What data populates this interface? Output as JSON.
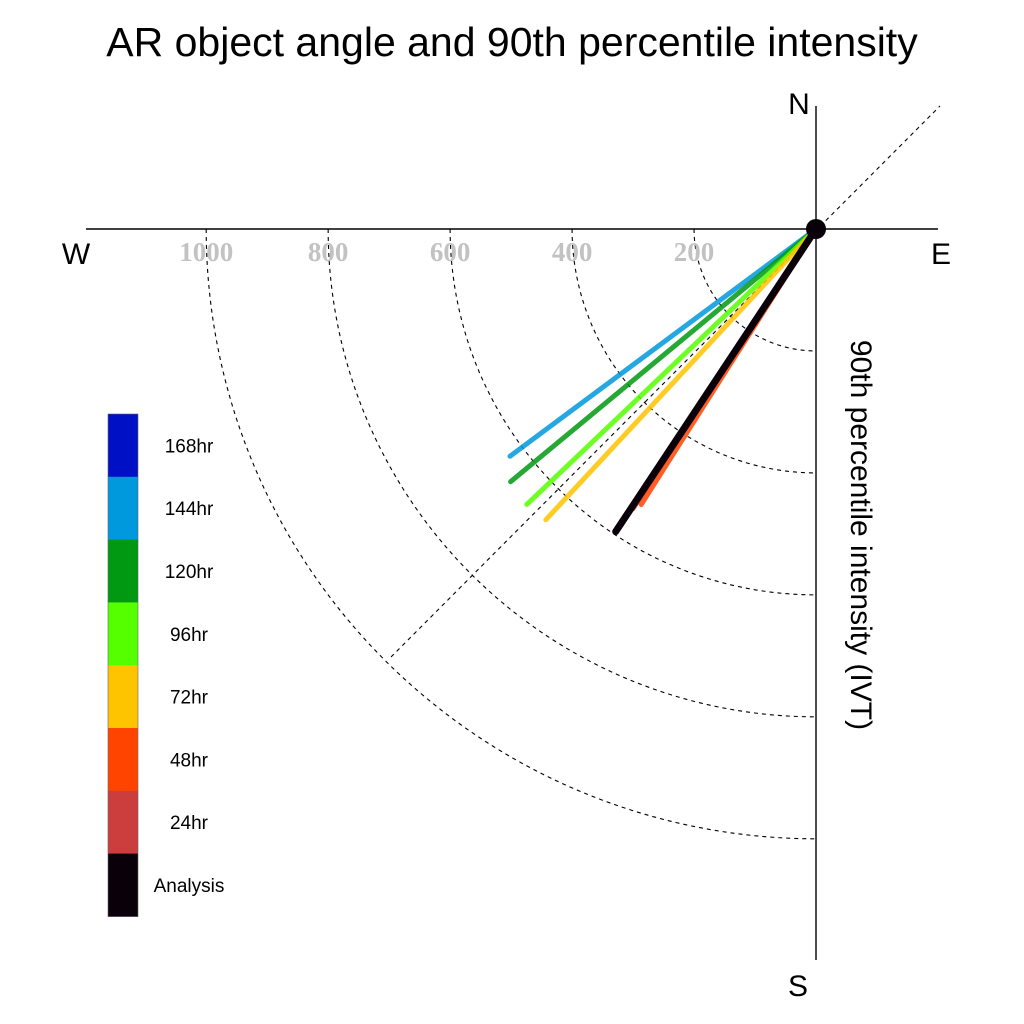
{
  "chart_data": {
    "type": "polar-vector",
    "title": "AR object angle and 90th percentile intensity",
    "radial_label": "90th percentile intensity (IVT)",
    "compass": {
      "north": "N",
      "south": "S",
      "east": "E",
      "west": "W"
    },
    "radial_ticks": [
      "200",
      "400",
      "600",
      "800",
      "1000"
    ],
    "radial_tick_values": [
      200,
      400,
      600,
      800,
      1000
    ],
    "radial_max": 1000,
    "rings_on": true,
    "reference_line_deg": 45,
    "legend": {
      "placement": "left",
      "entries": [
        {
          "label": "168hr",
          "color": "#0010c4"
        },
        {
          "label": "144hr",
          "color": "#0099dd"
        },
        {
          "label": "120hr",
          "color": "#009911"
        },
        {
          "label": "96hr",
          "color": "#55ff00"
        },
        {
          "label": "72hr",
          "color": "#ffc400"
        },
        {
          "label": "48hr",
          "color": "#ff4400"
        },
        {
          "label": "24hr",
          "color": "#cc3d3d"
        },
        {
          "label": "Analysis",
          "color": "#0a0009"
        }
      ]
    },
    "series": [
      {
        "name": "144hr",
        "color": "#0099dd",
        "angle_deg": -143.4,
        "intensity": 625
      },
      {
        "name": "120hr",
        "color": "#009911",
        "angle_deg": -140.4,
        "intensity": 650
      },
      {
        "name": "96hr",
        "color": "#55ff00",
        "angle_deg": -136.4,
        "intensity": 655
      },
      {
        "name": "72hr",
        "color": "#ffc400",
        "angle_deg": -132.9,
        "intensity": 651
      },
      {
        "name": "24hr",
        "color": "#cc3d3d",
        "angle_deg": -123.2,
        "intensity": 548
      },
      {
        "name": "48hr",
        "color": "#ff4400",
        "angle_deg": -122.4,
        "intensity": 535
      },
      {
        "name": "Analysis",
        "color": "#0a0009",
        "angle_deg": -123.5,
        "intensity": 595
      }
    ]
  }
}
